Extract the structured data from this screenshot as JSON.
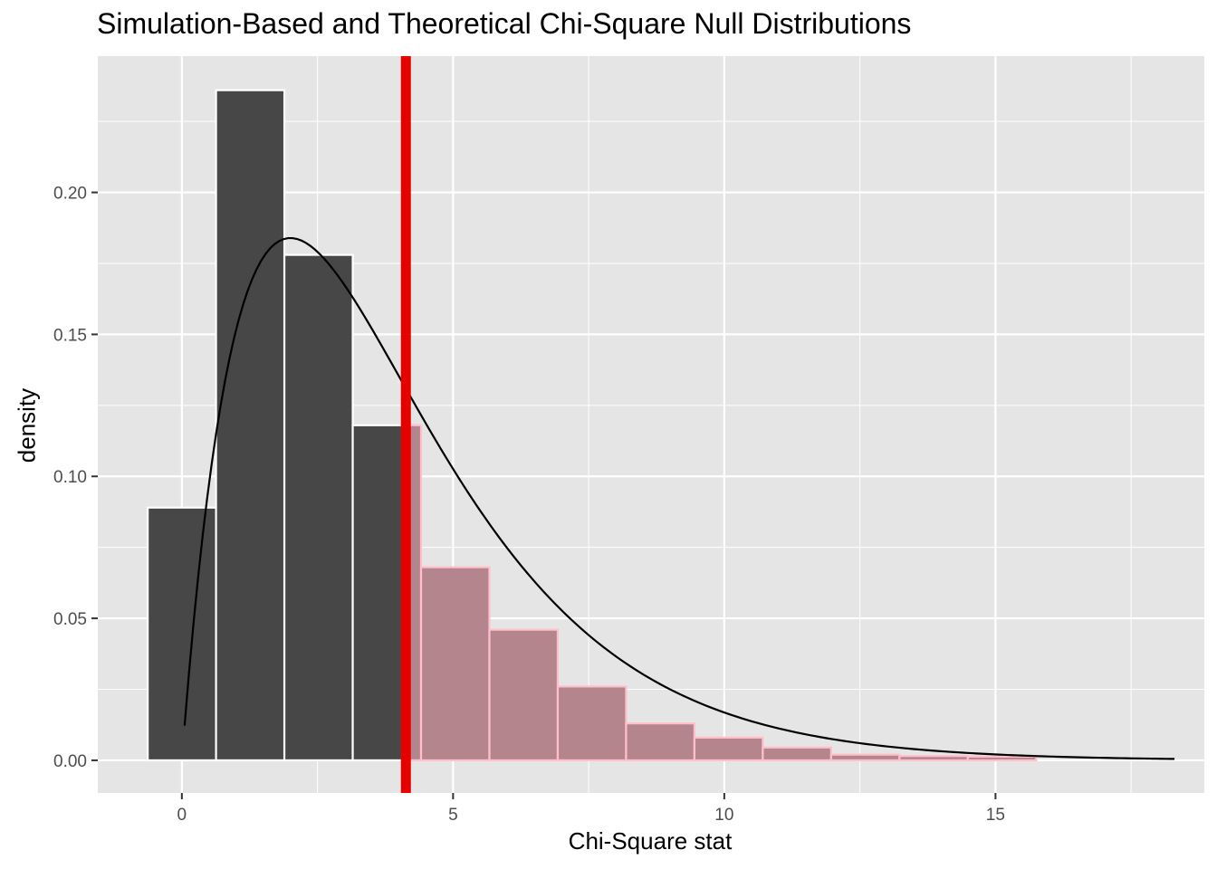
{
  "chart_data": {
    "type": "bar",
    "title": "Simulation-Based and Theoretical Chi-Square Null Distributions",
    "xlabel": "Chi-Square stat",
    "ylabel": "density",
    "xlim": [
      -1.55,
      18.85
    ],
    "ylim": [
      -0.0115,
      0.248
    ],
    "x_ticks": [
      0,
      5,
      10,
      15
    ],
    "y_ticks": [
      0.0,
      0.05,
      0.1,
      0.15,
      0.2
    ],
    "y_tick_labels": [
      "0.00",
      "0.05",
      "0.10",
      "0.15",
      "0.20"
    ],
    "grid": true,
    "legend": "none",
    "bin_edges": [
      -0.63,
      0.63,
      1.89,
      3.15,
      4.41,
      5.67,
      6.93,
      8.19,
      9.45,
      10.71,
      11.97,
      13.23,
      14.49,
      15.75
    ],
    "values": [
      0.089,
      0.236,
      0.178,
      0.118,
      0.068,
      0.046,
      0.026,
      0.013,
      0.008,
      0.0045,
      0.002,
      0.0015,
      0.0013
    ],
    "observed_stat": 4.13,
    "theoretical_curve": {
      "distribution": "chi-square",
      "df": 4,
      "x_range": [
        0.05,
        18.3
      ]
    },
    "colors": {
      "bar_fill": "#474747",
      "shaded_fill": "#b4858d",
      "shaded_outline": "#ffc0cb",
      "observed_line": "#e60000",
      "curve": "#000000",
      "panel_background": "#e5e5e5",
      "grid": "#ffffff"
    }
  }
}
